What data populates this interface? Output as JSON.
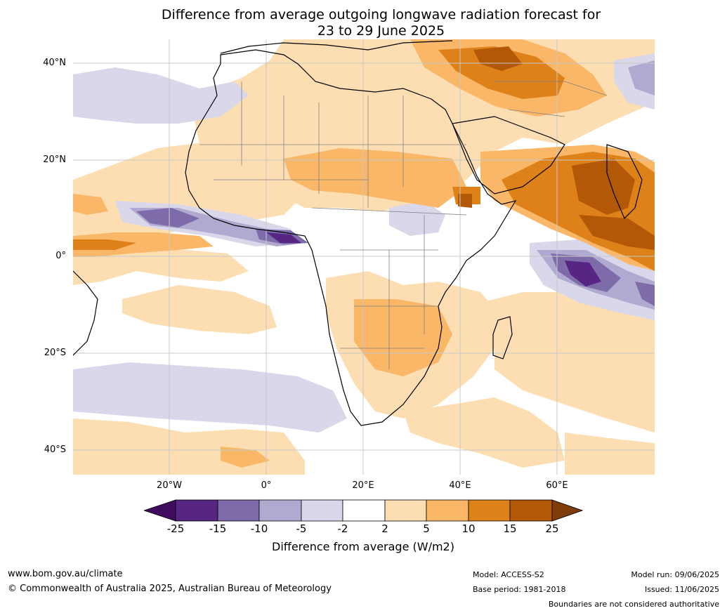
{
  "title": {
    "line1": "Difference from average outgoing longwave radiation forecast for",
    "line2": "23 to 29 June 2025"
  },
  "axes": {
    "y_ticks": [
      "40°N",
      "20°N",
      "0°",
      "20°S",
      "40°S"
    ],
    "x_ticks": [
      "20°W",
      "0°",
      "20°E",
      "40°E",
      "60°E"
    ]
  },
  "colorbar": {
    "labels": [
      "-25",
      "-15",
      "-10",
      "-5",
      "-2",
      "2",
      "5",
      "10",
      "15",
      "25"
    ],
    "colors": [
      "#3f0b5c",
      "#572583",
      "#7e6caa",
      "#b1aad0",
      "#d9d8ea",
      "#ffffff",
      "#fddeb2",
      "#f9b767",
      "#dd8118",
      "#b35806",
      "#7f3b08"
    ],
    "title": "Difference from average (W/m2)"
  },
  "footer": {
    "website": "www.bom.gov.au/climate",
    "copyright": "© Commonwealth of Australia 2025, Australian Bureau of Meteorology",
    "model": "Model: ACCESS-S2",
    "base_period": "Base period: 1981-2018",
    "model_run": "Model run: 09/06/2025",
    "issued": "Issued: 11/06/2025",
    "disclaimer": "Boundaries are not considered authoritative"
  }
}
